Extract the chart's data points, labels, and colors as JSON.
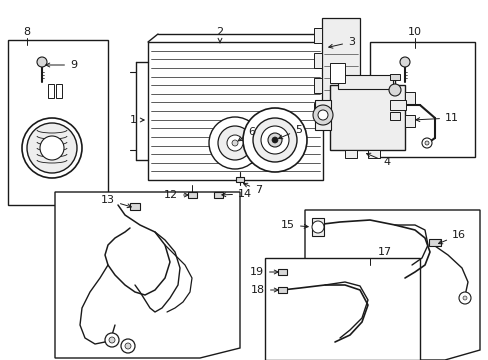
{
  "bg_color": "#ffffff",
  "line_color": "#1a1a1a",
  "gray_fill": "#d8d8d8",
  "light_gray": "#eeeeee",
  "fig_width": 4.89,
  "fig_height": 3.6,
  "dpi": 100
}
